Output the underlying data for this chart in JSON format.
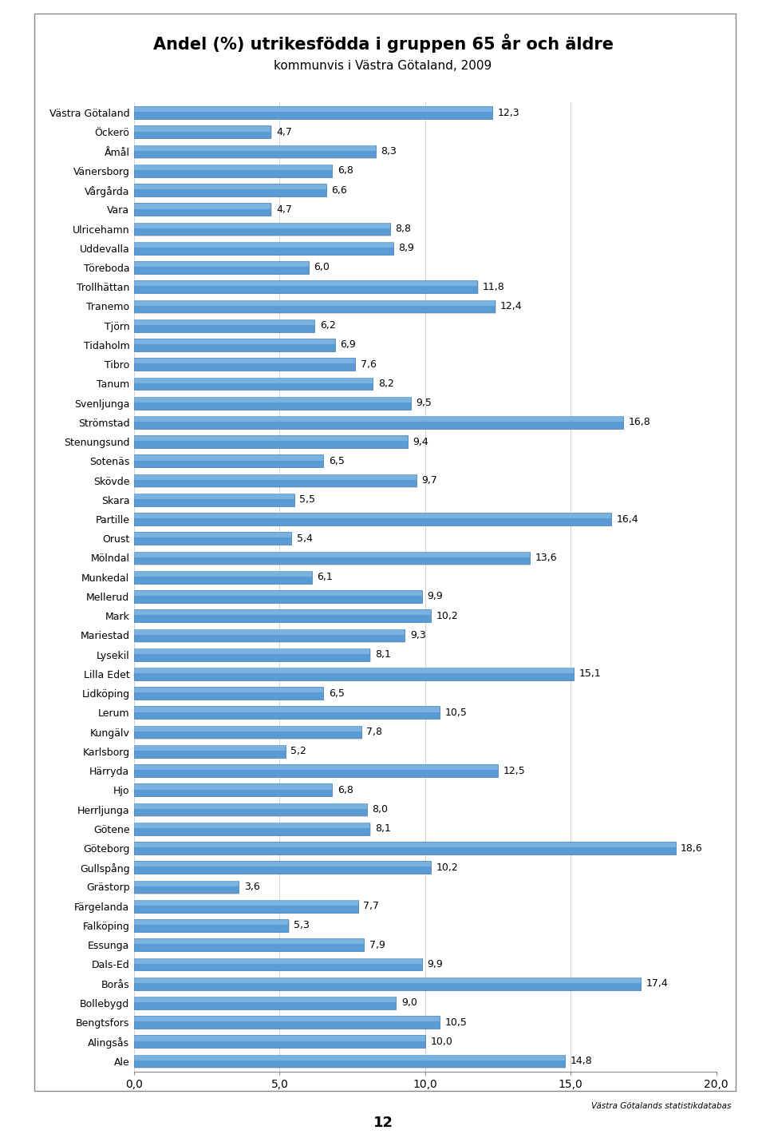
{
  "title": "Andel (%) utrikesfödda i gruppen 65 år och äldre",
  "subtitle": "kommunvis i Västra Götaland, 2009",
  "footer": "Västra Götalands statistikdatabas",
  "page_number": "12",
  "categories": [
    "Västra Götaland",
    "Öckerö",
    "Åmål",
    "Vänersborg",
    "Vårgårda",
    "Vara",
    "Ulricehamn",
    "Uddevalla",
    "Töreboda",
    "Trollhättan",
    "Tranemo",
    "Tjörn",
    "Tidaholm",
    "Tibro",
    "Tanum",
    "Svenljunga",
    "Strömstad",
    "Stenungsund",
    "Sotenäs",
    "Skövde",
    "Skara",
    "Partille",
    "Orust",
    "Mölndal",
    "Munkedal",
    "Mellerud",
    "Mark",
    "Mariestad",
    "Lysekil",
    "Lilla Edet",
    "Lidköping",
    "Lerum",
    "Kungälv",
    "Karlsborg",
    "Härryda",
    "Hjo",
    "Herrljunga",
    "Götene",
    "Göteborg",
    "Gullspång",
    "Grästorp",
    "Färgelanda",
    "Falköping",
    "Essunga",
    "Dals-Ed",
    "Borås",
    "Bollebygd",
    "Bengtsfors",
    "Alingsås",
    "Ale"
  ],
  "values": [
    12.3,
    4.7,
    8.3,
    6.8,
    6.6,
    4.7,
    8.8,
    8.9,
    6.0,
    11.8,
    12.4,
    6.2,
    6.9,
    7.6,
    8.2,
    9.5,
    16.8,
    9.4,
    6.5,
    9.7,
    5.5,
    16.4,
    5.4,
    13.6,
    6.1,
    9.9,
    10.2,
    9.3,
    8.1,
    15.1,
    6.5,
    10.5,
    7.8,
    5.2,
    12.5,
    6.8,
    8.0,
    8.1,
    18.6,
    10.2,
    3.6,
    7.7,
    5.3,
    7.9,
    9.9,
    17.4,
    9.0,
    10.5,
    10.0,
    14.8
  ],
  "bar_color": "#5B9BD5",
  "bar_color_light": "#92C5E8",
  "bar_color_dark": "#2E75B6",
  "bar_shadow_color": "#AAAAAA",
  "xlim": [
    0,
    20
  ],
  "xticks": [
    0.0,
    5.0,
    10.0,
    15.0,
    20.0
  ],
  "xtick_labels": [
    "0,0",
    "5,0",
    "10,0",
    "15,0",
    "20,0"
  ],
  "value_label_fontsize": 9,
  "category_fontsize": 9,
  "title_fontsize": 15,
  "subtitle_fontsize": 11,
  "background_color": "#FFFFFF",
  "chart_bg_color": "#FFFFFF",
  "grid_color": "#CCCCCC",
  "border_color": "#888888"
}
